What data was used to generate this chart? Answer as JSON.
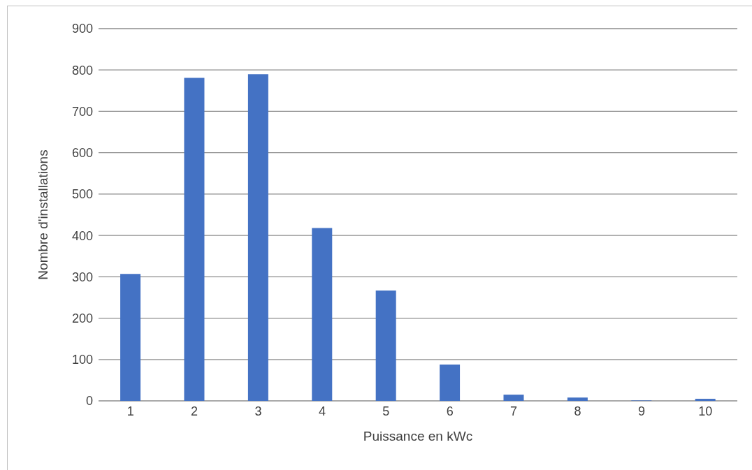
{
  "chart_data": {
    "type": "bar",
    "xlabel": "Puissance en kWc",
    "ylabel": "Nombre d'installations",
    "categories": [
      "1",
      "2",
      "3",
      "4",
      "5",
      "6",
      "7",
      "8",
      "9",
      "10"
    ],
    "values": [
      307,
      781,
      790,
      418,
      267,
      88,
      15,
      8,
      1,
      5
    ],
    "color": "#4472c4",
    "ylim": [
      0,
      900
    ],
    "yticks": [
      0,
      100,
      200,
      300,
      400,
      500,
      600,
      700,
      800,
      900
    ],
    "grid": "y",
    "legend": false
  }
}
